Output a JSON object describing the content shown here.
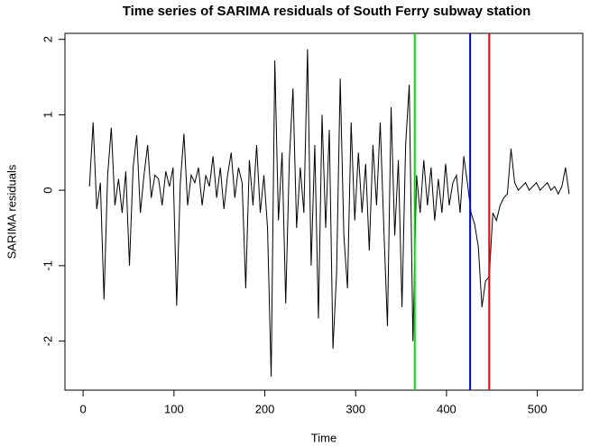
{
  "chart_data": {
    "type": "line",
    "title": "Time series of SARIMA residuals of South Ferry subway station",
    "x_label": "Time",
    "y_label": "SARIMA residuals",
    "x": [
      7,
      11,
      15,
      19,
      23,
      27,
      31,
      35,
      39,
      43,
      47,
      51,
      55,
      59,
      63,
      67,
      71,
      75,
      79,
      83,
      87,
      91,
      95,
      99,
      103,
      107,
      111,
      115,
      119,
      123,
      127,
      131,
      135,
      139,
      143,
      147,
      151,
      155,
      159,
      163,
      167,
      171,
      175,
      179,
      183,
      187,
      191,
      195,
      199,
      203,
      207,
      211,
      215,
      219,
      223,
      227,
      231,
      235,
      239,
      243,
      247,
      251,
      255,
      259,
      263,
      267,
      271,
      275,
      279,
      283,
      287,
      291,
      295,
      299,
      303,
      307,
      311,
      315,
      319,
      323,
      327,
      331,
      335,
      339,
      343,
      347,
      351,
      355,
      359,
      363,
      367,
      371,
      375,
      379,
      383,
      387,
      391,
      395,
      399,
      403,
      407,
      411,
      415,
      419,
      423,
      427,
      431,
      435,
      439,
      443,
      447,
      451,
      455,
      459,
      463,
      467,
      471,
      475,
      479,
      483,
      487,
      491,
      495,
      499,
      503,
      507,
      511,
      515,
      519,
      523,
      527,
      531,
      535
    ],
    "series": [
      {
        "color": "#000000",
        "values": [
          0.05,
          0.9,
          -0.25,
          0.1,
          -1.45,
          0.2,
          0.83,
          -0.2,
          0.15,
          -0.3,
          0.25,
          -1.0,
          0.3,
          0.73,
          -0.3,
          0.2,
          0.6,
          -0.1,
          0.2,
          0.15,
          -0.2,
          0.25,
          0.05,
          0.3,
          -1.53,
          0.1,
          0.75,
          -0.2,
          0.2,
          0.1,
          0.3,
          -0.2,
          0.2,
          0.05,
          0.45,
          -0.1,
          0.3,
          -0.25,
          0.2,
          0.5,
          -0.1,
          0.3,
          0.1,
          -1.3,
          0.4,
          -0.2,
          0.6,
          -0.3,
          0.2,
          -0.5,
          -2.47,
          1.72,
          -0.4,
          0.5,
          -1.5,
          0.4,
          1.35,
          -0.5,
          0.3,
          -0.3,
          1.87,
          -1.0,
          0.6,
          -1.7,
          1.0,
          -0.5,
          0.8,
          -2.1,
          -1.1,
          1.48,
          -0.6,
          -1.3,
          0.9,
          -0.4,
          0.5,
          -0.3,
          0.35,
          -0.8,
          0.6,
          -0.2,
          0.9,
          -0.5,
          -1.8,
          1.1,
          -0.6,
          0.4,
          -1.55,
          0.6,
          1.4,
          -2.0,
          0.2,
          -0.3,
          0.4,
          -0.2,
          0.3,
          -0.4,
          0.15,
          -0.3,
          0.35,
          -0.2,
          0.1,
          0.2,
          -0.3,
          0.45,
          0.1,
          -0.3,
          -0.45,
          -0.75,
          -1.55,
          -1.2,
          -1.15,
          -0.3,
          -0.4,
          -0.2,
          -0.1,
          -0.05,
          0.55,
          0.1,
          0.0,
          0.05,
          0.1,
          0.0,
          0.05,
          0.1,
          0.0,
          0.05,
          0.1,
          0.0,
          0.05,
          -0.05,
          0.05,
          0.3,
          -0.05
        ]
      }
    ],
    "vlines": [
      {
        "x": 365,
        "color": "#00dd00"
      },
      {
        "x": 426,
        "color": "#0000ee"
      },
      {
        "x": 447,
        "color": "#ee0000"
      }
    ],
    "xlim": [
      -20,
      550
    ],
    "xticks": [
      0,
      100,
      200,
      300,
      400,
      500
    ],
    "ylim": [
      -2.65,
      2.08
    ],
    "yticks": [
      -2,
      -1,
      0,
      1,
      2
    ]
  }
}
